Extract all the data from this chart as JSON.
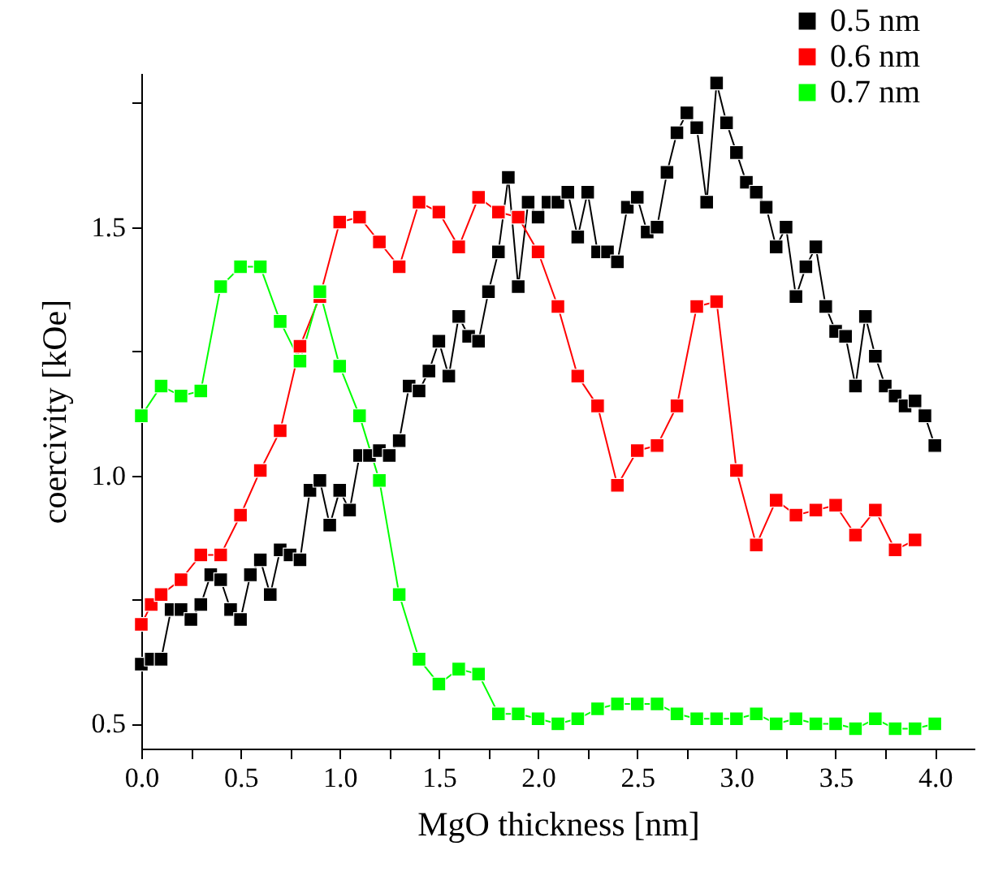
{
  "chart_data": {
    "type": "line",
    "xlabel": "MgO thickness [nm]",
    "ylabel": "coercivity [kOe]",
    "xlim": [
      0,
      4.2
    ],
    "ylim": [
      0.45,
      1.81
    ],
    "xticks": [
      {
        "value": 0,
        "label": "0.0"
      },
      {
        "value": 0.25,
        "label": null
      },
      {
        "value": 0.5,
        "label": "0.5"
      },
      {
        "value": 0.75,
        "label": null
      },
      {
        "value": 1,
        "label": "1.0"
      },
      {
        "value": 1.25,
        "label": null
      },
      {
        "value": 1.5,
        "label": "1.5"
      },
      {
        "value": 1.75,
        "label": null
      },
      {
        "value": 2,
        "label": "2.0"
      },
      {
        "value": 2.25,
        "label": null
      },
      {
        "value": 2.5,
        "label": "2.5"
      },
      {
        "value": 2.75,
        "label": null
      },
      {
        "value": 3,
        "label": "3.0"
      },
      {
        "value": 3.25,
        "label": null
      },
      {
        "value": 3.5,
        "label": "3.5"
      },
      {
        "value": 3.75,
        "label": null
      },
      {
        "value": 4,
        "label": "4.0"
      }
    ],
    "yticks": [
      {
        "value": 0.5,
        "label": "0.5"
      },
      {
        "value": 0.75,
        "label": null
      },
      {
        "value": 1,
        "label": "1.0"
      },
      {
        "value": 1.25,
        "label": null
      },
      {
        "value": 1.5,
        "label": "1.5"
      },
      {
        "value": 1.75,
        "label": null
      }
    ],
    "grid": false,
    "legend": "top right",
    "marker": "square",
    "line_style": "solid",
    "series": [
      {
        "name": "0.5 nm",
        "color": "#000000",
        "x": [
          0,
          0.05,
          0.1,
          0.15,
          0.2,
          0.25,
          0.3,
          0.35,
          0.4,
          0.45,
          0.5,
          0.55,
          0.6,
          0.65,
          0.7,
          0.75,
          0.8,
          0.85,
          0.9,
          0.95,
          1,
          1.05,
          1.1,
          1.15,
          1.2,
          1.25,
          1.3,
          1.35,
          1.4,
          1.45,
          1.5,
          1.55,
          1.6,
          1.65,
          1.7,
          1.75,
          1.8,
          1.85,
          1.9,
          1.95,
          2,
          2.05,
          2.1,
          2.15,
          2.2,
          2.25,
          2.3,
          2.35,
          2.4,
          2.45,
          2.5,
          2.55,
          2.6,
          2.65,
          2.7,
          2.75,
          2.8,
          2.85,
          2.9,
          2.95,
          3,
          3.05,
          3.1,
          3.15,
          3.2,
          3.25,
          3.3,
          3.35,
          3.4,
          3.45,
          3.5,
          3.55,
          3.6,
          3.65,
          3.7,
          3.75,
          3.8,
          3.85,
          3.9,
          3.95,
          4
        ],
        "values": [
          0.62,
          0.63,
          0.63,
          0.73,
          0.73,
          0.71,
          0.74,
          0.8,
          0.79,
          0.73,
          0.71,
          0.8,
          0.83,
          0.76,
          0.85,
          0.84,
          0.83,
          0.97,
          0.99,
          0.9,
          0.97,
          0.93,
          1.04,
          1.04,
          1.05,
          1.04,
          1.07,
          1.18,
          1.17,
          1.21,
          1.27,
          1.2,
          1.32,
          1.28,
          1.27,
          1.37,
          1.45,
          1.6,
          1.38,
          1.55,
          1.52,
          1.55,
          1.55,
          1.57,
          1.48,
          1.57,
          1.45,
          1.45,
          1.43,
          1.54,
          1.56,
          1.49,
          1.5,
          1.61,
          1.69,
          1.73,
          1.7,
          1.55,
          1.79,
          1.71,
          1.65,
          1.59,
          1.57,
          1.54,
          1.46,
          1.5,
          1.36,
          1.42,
          1.46,
          1.34,
          1.29,
          1.28,
          1.18,
          1.32,
          1.24,
          1.18,
          1.16,
          1.14,
          1.15,
          1.12,
          1.06
        ]
      },
      {
        "name": "0.6 nm",
        "color": "#ff0000",
        "x": [
          0,
          0.05,
          0.1,
          0.2,
          0.3,
          0.4,
          0.5,
          0.6,
          0.7,
          0.8,
          0.9,
          1,
          1.1,
          1.2,
          1.3,
          1.4,
          1.5,
          1.6,
          1.7,
          1.8,
          1.9,
          2,
          2.1,
          2.2,
          2.3,
          2.4,
          2.5,
          2.6,
          2.7,
          2.8,
          2.9,
          3,
          3.1,
          3.2,
          3.3,
          3.4,
          3.5,
          3.6,
          3.7,
          3.8,
          3.9
        ],
        "values": [
          0.7,
          0.74,
          0.76,
          0.79,
          0.84,
          0.84,
          0.92,
          1.01,
          1.09,
          1.26,
          1.36,
          1.51,
          1.52,
          1.47,
          1.42,
          1.55,
          1.53,
          1.46,
          1.56,
          1.53,
          1.52,
          1.45,
          1.34,
          1.2,
          1.14,
          0.98,
          1.05,
          1.06,
          1.14,
          1.34,
          1.35,
          1.01,
          0.86,
          0.95,
          0.92,
          0.93,
          0.94,
          0.88,
          0.93,
          0.85,
          0.87
        ]
      },
      {
        "name": "0.7 nm",
        "color": "#00ff00",
        "x": [
          0,
          0.1,
          0.2,
          0.3,
          0.4,
          0.5,
          0.6,
          0.7,
          0.8,
          0.9,
          1,
          1.1,
          1.2,
          1.3,
          1.4,
          1.5,
          1.6,
          1.7,
          1.8,
          1.9,
          2,
          2.1,
          2.2,
          2.3,
          2.4,
          2.5,
          2.6,
          2.7,
          2.8,
          2.9,
          3,
          3.1,
          3.2,
          3.3,
          3.4,
          3.5,
          3.6,
          3.7,
          3.8,
          3.9,
          4
        ],
        "values": [
          1.12,
          1.18,
          1.16,
          1.17,
          1.38,
          1.42,
          1.42,
          1.31,
          1.23,
          1.37,
          1.22,
          1.12,
          0.99,
          0.76,
          0.63,
          0.58,
          0.61,
          0.6,
          0.52,
          0.52,
          0.51,
          0.5,
          0.51,
          0.53,
          0.54,
          0.54,
          0.54,
          0.52,
          0.51,
          0.51,
          0.51,
          0.52,
          0.5,
          0.51,
          0.5,
          0.5,
          0.49,
          0.51,
          0.49,
          0.49,
          0.5
        ]
      }
    ]
  }
}
